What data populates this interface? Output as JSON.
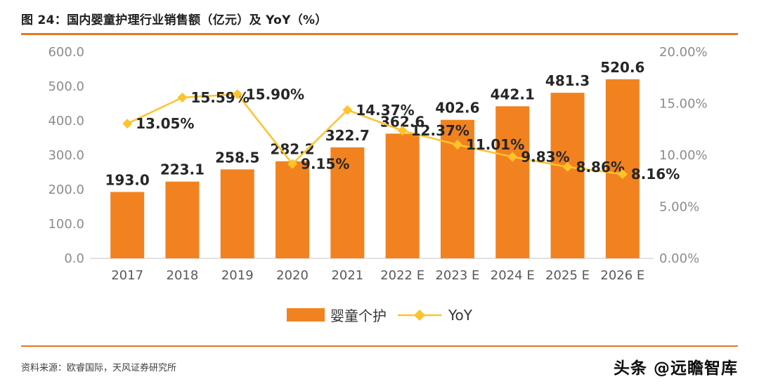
{
  "header": {
    "title": "图 24：国内婴童护理行业销售额（亿元）及 YoY（%）"
  },
  "chart_data": {
    "type": "bar+line",
    "title": "国内婴童护理行业销售额（亿元）及 YoY（%）",
    "categories": [
      "2017",
      "2018",
      "2019",
      "2020",
      "2021",
      "2022 E",
      "2023 E",
      "2024 E",
      "2025 E",
      "2026 E"
    ],
    "series": [
      {
        "name": "婴童个护",
        "type": "bar",
        "axis": "left",
        "color": "#F28220",
        "values": [
          193.0,
          223.1,
          258.5,
          282.2,
          322.7,
          362.6,
          402.6,
          442.1,
          481.3,
          520.6
        ],
        "labels": [
          "193.0",
          "223.1",
          "258.5",
          "282.2",
          "322.7",
          "362.6",
          "402.6",
          "442.1",
          "481.3",
          "520.6"
        ]
      },
      {
        "name": "YoY",
        "type": "line",
        "axis": "right",
        "color": "#FFC32B",
        "values": [
          13.05,
          15.59,
          15.9,
          9.15,
          14.37,
          12.37,
          11.01,
          9.83,
          8.86,
          8.16
        ],
        "labels": [
          "13.05%",
          "15.59%",
          "15.90%",
          "9.15%",
          "14.37%",
          "12.37%",
          "11.01%",
          "9.83%",
          "8.86%",
          "8.16%"
        ]
      }
    ],
    "left_axis": {
      "min": 0,
      "max": 600,
      "ticks": [
        "600.0",
        "500.0",
        "400.0",
        "300.0",
        "200.0",
        "100.0",
        "0.0"
      ]
    },
    "right_axis": {
      "min": 0,
      "max": 20,
      "ticks": [
        "20.00%",
        "15.00%",
        "10.00%",
        "5.00%",
        "0.00%"
      ]
    },
    "grid": false,
    "legend_position": "bottom",
    "legend": [
      "婴童个护",
      "YoY"
    ]
  },
  "footer": {
    "source": "资料来源：欧睿国际，天风证券研究所",
    "watermark": "头条 @远瞻智库"
  },
  "colors": {
    "accent_rule": "#E87722",
    "bar": "#F28220",
    "line": "#FFC32B",
    "axis_text": "#8C8C8C",
    "label_text": "#262626"
  }
}
